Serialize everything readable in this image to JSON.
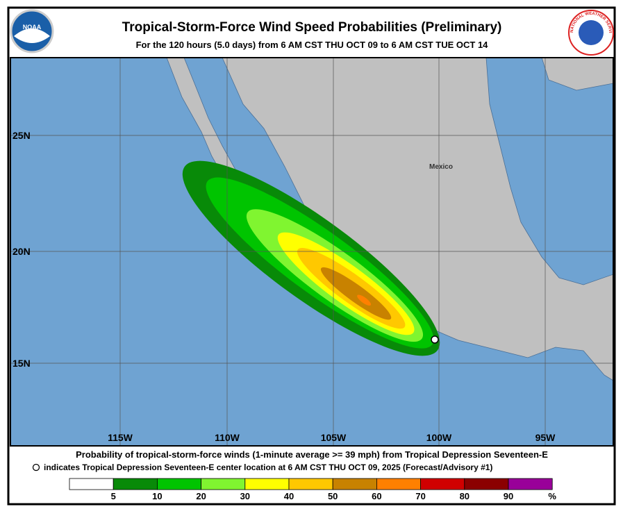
{
  "header": {
    "title": "Tropical-Storm-Force Wind Speed Probabilities (Preliminary)",
    "subtitle": "For the 120 hours (5.0 days) from 6 AM CST THU OCT 09 to 6 AM CST TUE OCT 14",
    "left_logo": "NOAA",
    "right_logo": "NATIONAL WEATHER SERVICE"
  },
  "map": {
    "lat_labels": [
      "25N",
      "20N",
      "15N"
    ],
    "lon_labels": [
      "115W",
      "110W",
      "105W",
      "100W",
      "95W"
    ],
    "place_labels": [
      "Mexico"
    ]
  },
  "footer": {
    "line1": "Probability of tropical-storm-force winds (1-minute average >= 39 mph) from Tropical Depression Seventeen-E",
    "line2": "indicates Tropical Depression Seventeen-E center location at 6 AM CST THU OCT 09, 2025 (Forecast/Advisory #1)"
  },
  "legend": {
    "colors": [
      "#ffffff",
      "#088a08",
      "#00c400",
      "#80f530",
      "#ffff00",
      "#ffc800",
      "#c88200",
      "#ff8000",
      "#d00000",
      "#8b0000",
      "#990099"
    ],
    "labels": [
      "5",
      "10",
      "20",
      "30",
      "40",
      "50",
      "60",
      "70",
      "80",
      "90",
      "%"
    ]
  }
}
